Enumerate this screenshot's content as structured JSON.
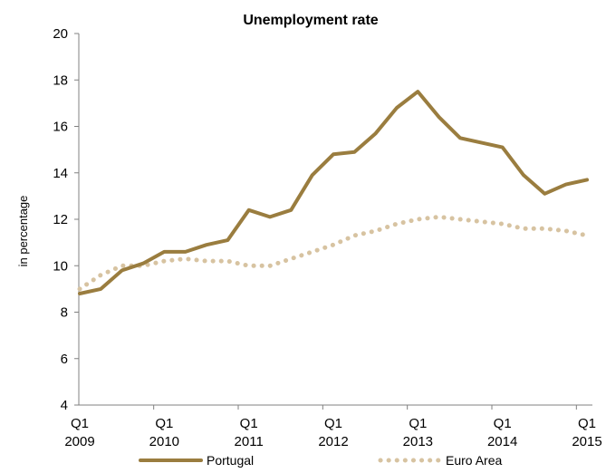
{
  "chart_data": {
    "type": "line",
    "title": "Unemployment rate",
    "ylabel": "in percentage",
    "xlabel": "",
    "ylim": [
      4,
      20
    ],
    "yticks": [
      4,
      6,
      8,
      10,
      12,
      14,
      16,
      18,
      20
    ],
    "x_tick_labels": [
      {
        "quarter": "Q1",
        "year": "2009",
        "index": 0
      },
      {
        "quarter": "Q1",
        "year": "2010",
        "index": 4
      },
      {
        "quarter": "Q1",
        "year": "2011",
        "index": 8
      },
      {
        "quarter": "Q1",
        "year": "2012",
        "index": 12
      },
      {
        "quarter": "Q1",
        "year": "2013",
        "index": 16
      },
      {
        "quarter": "Q1",
        "year": "2014",
        "index": 20
      },
      {
        "quarter": "Q1",
        "year": "2015",
        "index": 24
      }
    ],
    "x": [
      "2009Q1",
      "2009Q2",
      "2009Q3",
      "2009Q4",
      "2010Q1",
      "2010Q2",
      "2010Q3",
      "2010Q4",
      "2011Q1",
      "2011Q2",
      "2011Q3",
      "2011Q4",
      "2012Q1",
      "2012Q2",
      "2012Q3",
      "2012Q4",
      "2013Q1",
      "2013Q2",
      "2013Q3",
      "2013Q4",
      "2014Q1",
      "2014Q2",
      "2014Q3",
      "2014Q4",
      "2015Q1"
    ],
    "series": [
      {
        "name": "Portugal",
        "color": "#9a7d3f",
        "style": "solid",
        "values": [
          8.8,
          9.0,
          9.8,
          10.1,
          10.6,
          10.6,
          10.9,
          11.1,
          12.4,
          12.1,
          12.4,
          13.9,
          14.8,
          14.9,
          15.7,
          16.8,
          17.5,
          16.4,
          15.5,
          15.3,
          15.1,
          13.9,
          13.1,
          13.5,
          13.7
        ]
      },
      {
        "name": "Euro Area",
        "color": "#d7c3a1",
        "style": "dotted",
        "values": [
          9.0,
          9.6,
          10.0,
          10.0,
          10.2,
          10.3,
          10.2,
          10.2,
          10.0,
          10.0,
          10.3,
          10.6,
          10.9,
          11.3,
          11.5,
          11.8,
          12.0,
          12.1,
          12.0,
          11.9,
          11.8,
          11.6,
          11.6,
          11.5,
          11.3
        ]
      }
    ],
    "grid": false,
    "legend_position": "bottom"
  }
}
